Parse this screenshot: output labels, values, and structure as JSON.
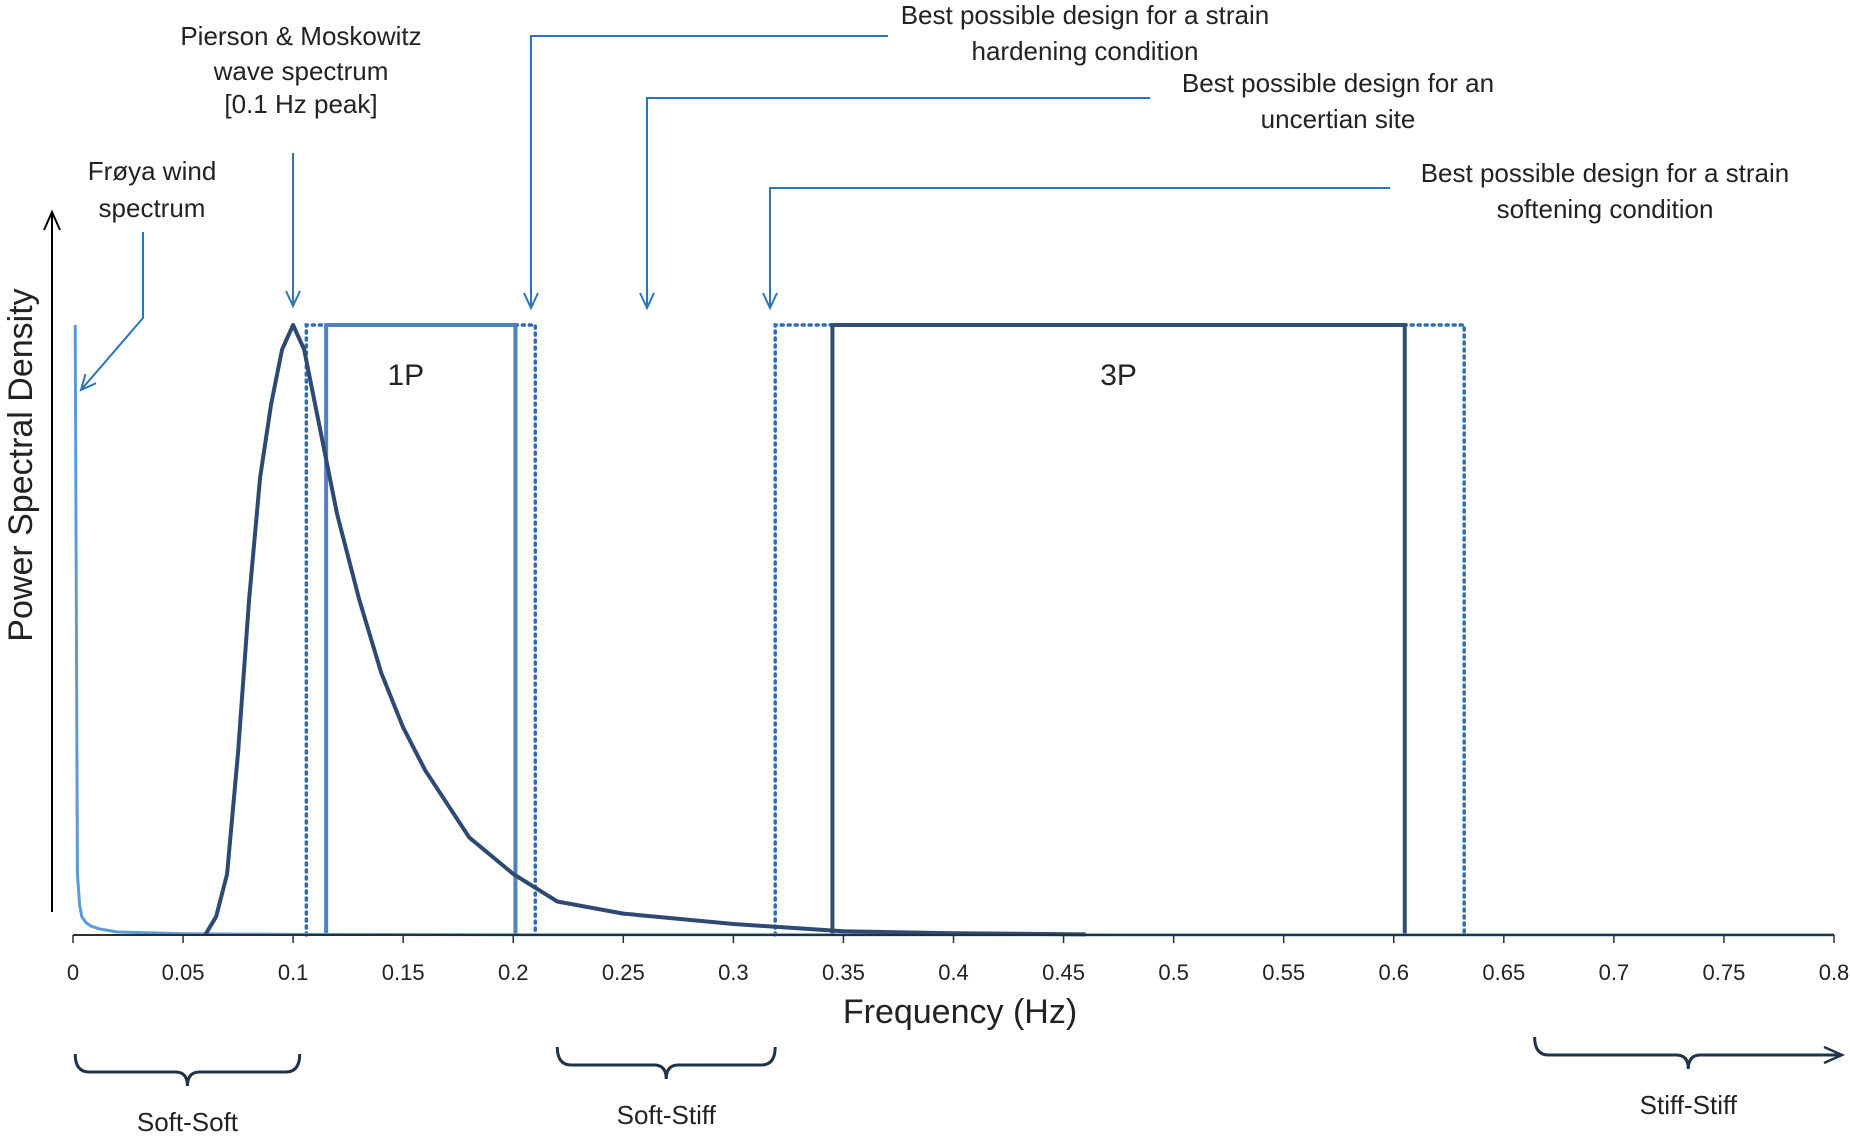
{
  "chart_data": {
    "type": "line",
    "xlabel": "Frequency (Hz)",
    "ylabel": "Power Spectral Density",
    "xlim": [
      0,
      0.8
    ],
    "x_ticks": [
      "0",
      "0.05",
      "0.1",
      "0.15",
      "0.2",
      "0.25",
      "0.3",
      "0.35",
      "0.4",
      "0.45",
      "0.5",
      "0.55",
      "0.6",
      "0.65",
      "0.7",
      "0.75",
      "0.8"
    ],
    "grid": false,
    "colors": {
      "wind": "#5b9bd5",
      "wave": "#2e4a72",
      "band_1p": "#4f81bd",
      "band_3p": "#34506e",
      "dotted": "#2e6db4",
      "annotation": "#2e75b6",
      "axis": "#000000",
      "bracket": "#1f3449"
    },
    "series": [
      {
        "name": "Frøya wind spectrum",
        "x": [
          0.001,
          0.002,
          0.003,
          0.004,
          0.006,
          0.008,
          0.012,
          0.02,
          0.05,
          0.1,
          0.2,
          0.4,
          0.8
        ],
        "y": [
          1.0,
          0.1,
          0.05,
          0.03,
          0.02,
          0.015,
          0.01,
          0.005,
          0.002,
          0.001,
          0.0005,
          0.0003,
          0.0002
        ]
      },
      {
        "name": "Pierson & Moskowitz wave spectrum",
        "x": [
          0.06,
          0.065,
          0.07,
          0.075,
          0.08,
          0.085,
          0.09,
          0.095,
          0.1,
          0.105,
          0.11,
          0.12,
          0.13,
          0.14,
          0.15,
          0.16,
          0.18,
          0.2,
          0.22,
          0.25,
          0.3,
          0.35,
          0.4,
          0.46
        ],
        "y": [
          0.0,
          0.03,
          0.1,
          0.3,
          0.55,
          0.75,
          0.87,
          0.96,
          1.0,
          0.96,
          0.87,
          0.69,
          0.55,
          0.43,
          0.34,
          0.27,
          0.16,
          0.1,
          0.055,
          0.035,
          0.018,
          0.006,
          0.003,
          0.001
        ]
      }
    ],
    "bands": [
      {
        "label": "1P",
        "solid": [
          0.115,
          0.201
        ],
        "dotted": [
          0.106,
          0.21
        ]
      },
      {
        "label": "3P",
        "solid": [
          0.345,
          0.605
        ],
        "dotted": [
          0.319,
          0.632
        ]
      }
    ],
    "annotations": [
      {
        "lines": [
          "Frøya wind",
          "spectrum"
        ],
        "x": 0.003
      },
      {
        "lines": [
          "Pierson & Moskowitz",
          "wave spectrum",
          "[0.1 Hz peak]"
        ],
        "x": 0.1
      },
      {
        "lines": [
          "Best possible design for a strain",
          "hardening condition"
        ],
        "x": 0.208
      },
      {
        "lines": [
          "Best possible design for an",
          "uncertian site"
        ],
        "x": 0.26
      },
      {
        "lines": [
          "Best possible design for a strain",
          "softening condition"
        ],
        "x": 0.316
      }
    ],
    "regions": [
      {
        "label": "Soft-Soft",
        "range": [
          0.001,
          0.103
        ]
      },
      {
        "label": "Soft-Stiff",
        "range": [
          0.22,
          0.319
        ]
      },
      {
        "label": "Stiff-Stiff",
        "range": [
          0.664,
          0.8
        ]
      }
    ]
  }
}
